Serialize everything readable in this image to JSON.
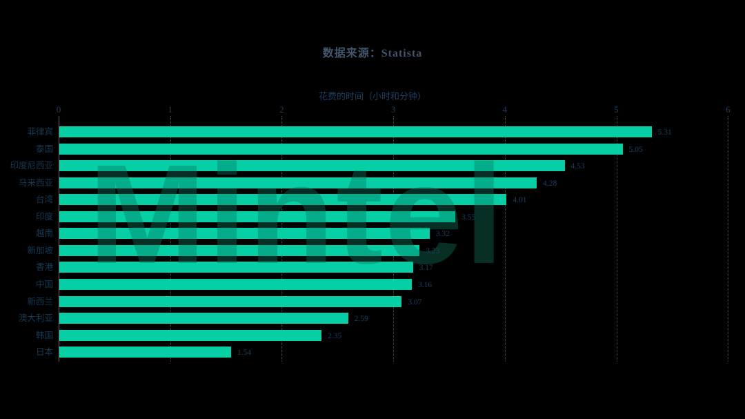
{
  "title": "数据来源：Statista",
  "watermark": "Mintel",
  "colors": {
    "background": "#000000",
    "bar": "#06cfa5",
    "value_text": "#1e3f60",
    "category_text": "#173a52",
    "title_text": "#44566b",
    "gridline": "#4e4e4e"
  },
  "chart_data": {
    "type": "bar",
    "orientation": "horizontal",
    "title": "数据来源：Statista",
    "xlabel": "花费的时间（小时和分钟）",
    "ylabel": "",
    "xlim": [
      0,
      6
    ],
    "x_ticks": [
      0,
      1,
      2,
      3,
      4,
      5,
      6
    ],
    "grid": "vertical-dotted",
    "legend": "none",
    "categories": [
      "菲律宾",
      "泰国",
      "印度尼西亚",
      "马来西亚",
      "台湾",
      "印度",
      "越南",
      "新加坡",
      "香港",
      "中国",
      "新西兰",
      "澳大利亚",
      "韩国",
      "日本"
    ],
    "values": [
      5.31,
      5.05,
      4.53,
      4.28,
      4.01,
      3.55,
      3.32,
      3.23,
      3.17,
      3.16,
      3.07,
      2.59,
      2.35,
      1.54
    ],
    "value_label_format": "0.00"
  }
}
